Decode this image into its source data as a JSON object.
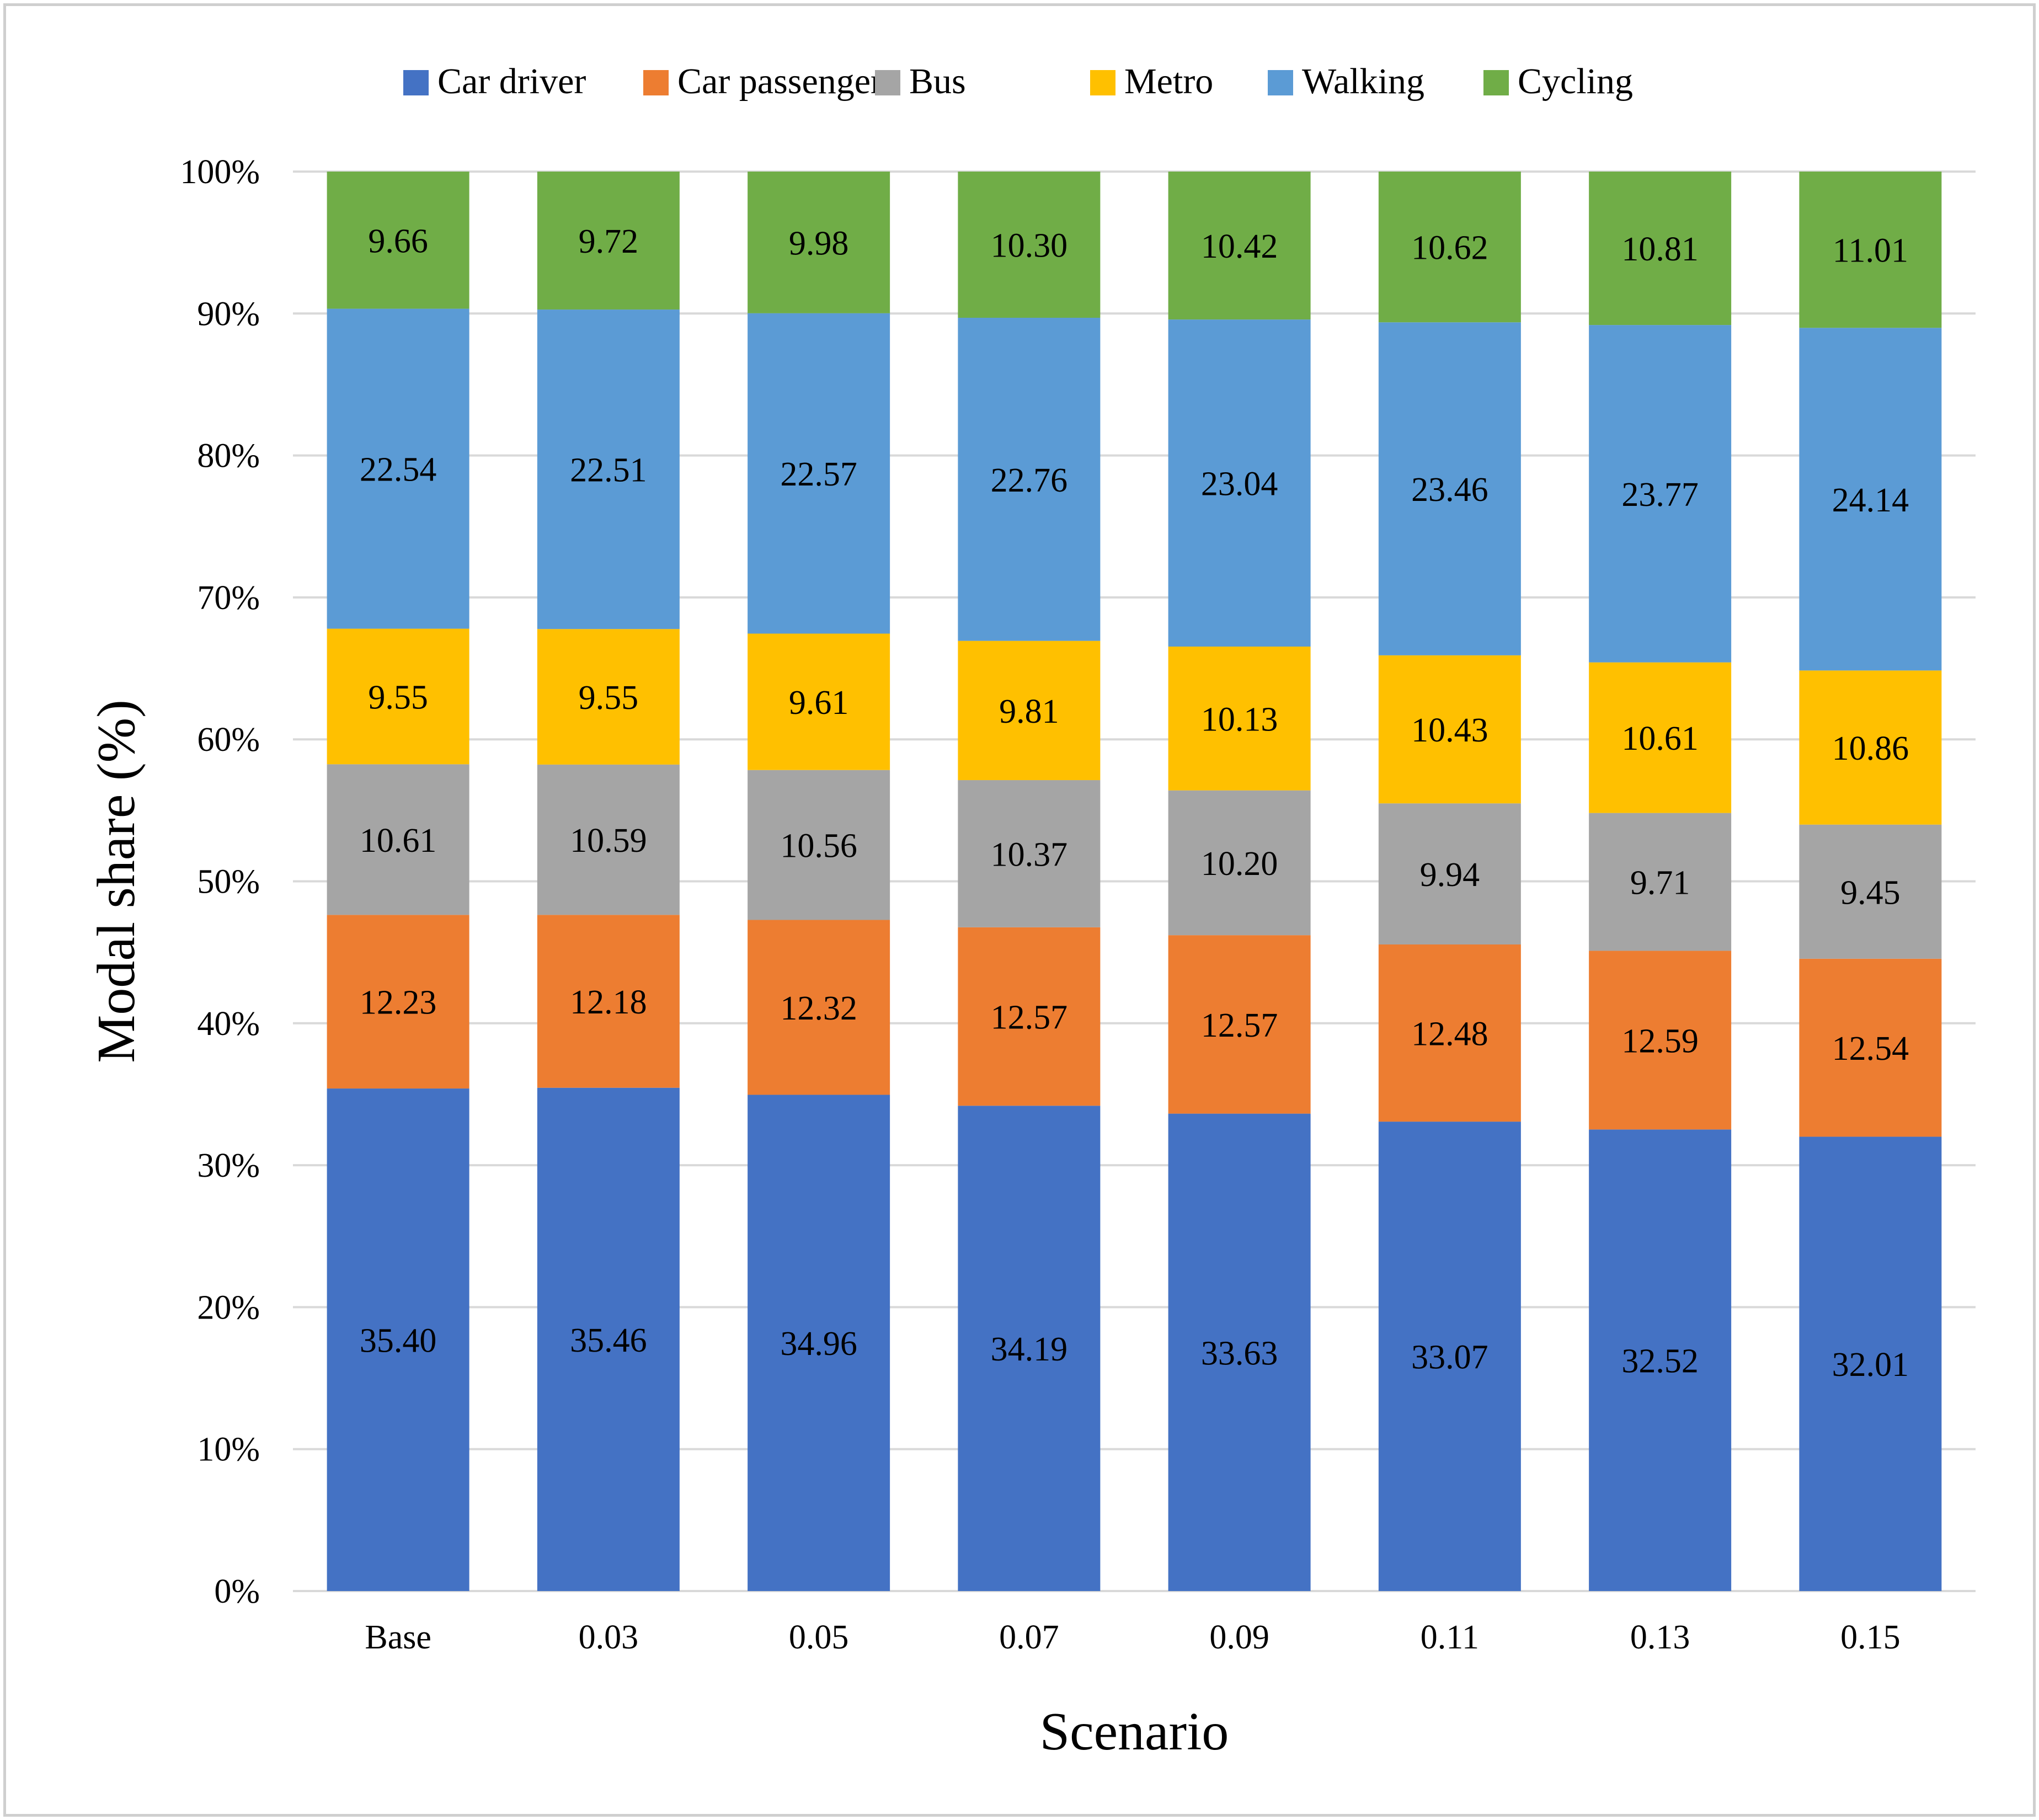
{
  "chart_data": {
    "type": "bar",
    "stacked": true,
    "percent_stacked": true,
    "title": "",
    "xlabel": "Scenario",
    "ylabel": "Modal share (%)",
    "ylim": [
      0,
      100
    ],
    "y_ticks": [
      "0%",
      "10%",
      "20%",
      "30%",
      "40%",
      "50%",
      "60%",
      "70%",
      "80%",
      "90%",
      "100%"
    ],
    "grid": true,
    "legend_position": "top",
    "categories": [
      "Base",
      "0.03",
      "0.05",
      "0.07",
      "0.09",
      "0.11",
      "0.13",
      "0.15"
    ],
    "series": [
      {
        "name": "Car driver",
        "color": "#4472C4",
        "values": [
          35.4,
          35.46,
          34.96,
          34.19,
          33.63,
          33.07,
          32.52,
          32.01
        ],
        "labels": [
          "35.40",
          "35.46",
          "34.96",
          "34.19",
          "33.63",
          "33.07",
          "32.52",
          "32.01"
        ]
      },
      {
        "name": "Car passenger",
        "color": "#ED7D31",
        "values": [
          12.23,
          12.18,
          12.32,
          12.57,
          12.57,
          12.48,
          12.59,
          12.54
        ],
        "labels": [
          "12.23",
          "12.18",
          "12.32",
          "12.57",
          "12.57",
          "12.48",
          "12.59",
          "12.54"
        ]
      },
      {
        "name": "Bus",
        "color": "#A5A5A5",
        "values": [
          10.61,
          10.59,
          10.56,
          10.37,
          10.2,
          9.94,
          9.71,
          9.45
        ],
        "labels": [
          "10.61",
          "10.59",
          "10.56",
          "10.37",
          "10.20",
          "9.94",
          "9.71",
          "9.45"
        ]
      },
      {
        "name": "Metro",
        "color": "#FFC000",
        "values": [
          9.55,
          9.55,
          9.61,
          9.81,
          10.13,
          10.43,
          10.61,
          10.86
        ],
        "labels": [
          "9.55",
          "9.55",
          "9.61",
          "9.81",
          "10.13",
          "10.43",
          "10.61",
          "10.86"
        ]
      },
      {
        "name": "Walking",
        "color": "#5B9BD5",
        "values": [
          22.54,
          22.51,
          22.57,
          22.76,
          23.04,
          23.46,
          23.77,
          24.14
        ],
        "labels": [
          "22.54",
          "22.51",
          "22.57",
          "22.76",
          "23.04",
          "23.46",
          "23.77",
          "24.14"
        ]
      },
      {
        "name": "Cycling",
        "color": "#70AD47",
        "values": [
          9.66,
          9.72,
          9.98,
          10.3,
          10.42,
          10.62,
          10.81,
          11.01
        ],
        "labels": [
          "9.66",
          "9.72",
          "9.98",
          "10.30",
          "10.42",
          "10.62",
          "10.81",
          "11.01"
        ]
      }
    ]
  }
}
